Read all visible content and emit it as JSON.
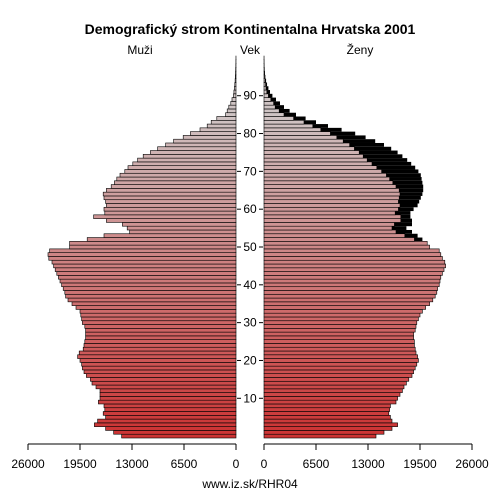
{
  "chart_data": {
    "type": "bar",
    "title": "Demografický strom Kontinentalna Hrvatska 2001",
    "left_label": "Muži",
    "center_label": "Vek",
    "right_label": "Ženy",
    "footer": "www.iz.sk/RHR04",
    "x_ticks": [
      "26000",
      "19500",
      "13000",
      "6500",
      "0",
      "0",
      "6500",
      "13000",
      "19500",
      "26000"
    ],
    "y_ticks": [
      "10",
      "20",
      "30",
      "40",
      "50",
      "60",
      "70",
      "80",
      "90"
    ],
    "xlim": [
      0,
      26000
    ],
    "age_range": [
      0,
      100
    ],
    "ages": [
      0,
      1,
      2,
      3,
      4,
      5,
      6,
      7,
      8,
      9,
      10,
      11,
      12,
      13,
      14,
      15,
      16,
      17,
      18,
      19,
      20,
      21,
      22,
      23,
      24,
      25,
      26,
      27,
      28,
      29,
      30,
      31,
      32,
      33,
      34,
      35,
      36,
      37,
      38,
      39,
      40,
      41,
      42,
      43,
      44,
      45,
      46,
      47,
      48,
      49,
      50,
      51,
      52,
      53,
      54,
      55,
      56,
      57,
      58,
      59,
      60,
      61,
      62,
      63,
      64,
      65,
      66,
      67,
      68,
      69,
      70,
      71,
      72,
      73,
      74,
      75,
      76,
      77,
      78,
      79,
      80,
      81,
      82,
      83,
      84,
      85,
      86,
      87,
      88,
      89,
      90,
      91,
      92,
      93,
      94,
      95,
      96,
      97,
      98,
      99,
      100
    ],
    "men": [
      14300,
      15300,
      16300,
      17700,
      17300,
      16300,
      16600,
      16400,
      16500,
      17200,
      17000,
      17000,
      17000,
      17500,
      18000,
      18200,
      18700,
      19000,
      19200,
      19300,
      19500,
      19800,
      19600,
      19100,
      19000,
      18900,
      18800,
      18800,
      18800,
      18900,
      19200,
      19300,
      19400,
      19500,
      20000,
      20500,
      21000,
      21300,
      21400,
      21600,
      21800,
      22000,
      22200,
      22400,
      22600,
      22800,
      23000,
      23400,
      23500,
      23300,
      20800,
      20800,
      18600,
      16500,
      13300,
      13600,
      14200,
      16200,
      17800,
      16400,
      16500,
      16200,
      16300,
      16500,
      16600,
      16200,
      15600,
      15200,
      14900,
      14500,
      13900,
      13500,
      12900,
      12300,
      11600,
      10700,
      9800,
      8800,
      7800,
      6600,
      5700,
      4500,
      3600,
      3100,
      2400,
      1300,
      1100,
      900,
      650,
      500,
      320,
      260,
      200,
      150,
      110,
      75,
      55,
      40,
      25,
      15,
      8
    ],
    "women": [
      14000,
      15000,
      16000,
      16700,
      16000,
      15800,
      15600,
      15700,
      15800,
      16500,
      16700,
      17000,
      17300,
      17500,
      17800,
      18100,
      18500,
      18700,
      18900,
      19100,
      19300,
      19200,
      19000,
      18900,
      18800,
      18800,
      18700,
      18700,
      18900,
      19000,
      19100,
      19300,
      19500,
      19800,
      20200,
      20700,
      21100,
      21400,
      21600,
      21700,
      21900,
      22000,
      22100,
      22300,
      22500,
      22700,
      22600,
      22300,
      22100,
      21900,
      20700,
      20400,
      19800,
      19200,
      18500,
      17800,
      18500,
      18500,
      18300,
      18300,
      18700,
      19200,
      19400,
      19600,
      19800,
      19900,
      19900,
      19800,
      19700,
      19600,
      19300,
      18900,
      18400,
      17900,
      17300,
      16700,
      15900,
      15000,
      13900,
      12700,
      11400,
      9700,
      8000,
      6500,
      5200,
      4000,
      3200,
      2500,
      2000,
      1500,
      1050,
      750,
      550,
      380,
      260,
      170,
      110,
      65,
      35,
      20,
      10
    ],
    "women_excess": [
      0,
      0,
      0,
      0,
      0,
      0,
      0,
      0,
      0,
      0,
      0,
      0,
      0,
      0,
      0,
      0,
      0,
      0,
      0,
      0,
      0,
      0,
      0,
      0,
      0,
      0,
      0,
      0,
      0,
      0,
      0,
      0,
      0,
      0,
      0,
      0,
      0,
      0,
      0,
      0,
      0,
      0,
      0,
      0,
      0,
      0,
      0,
      0,
      0,
      0,
      0,
      0,
      1000,
      1600,
      2000,
      1800,
      2200,
      1400,
      1200,
      1900,
      1900,
      2200,
      2600,
      2700,
      2800,
      3000,
      3400,
      3700,
      4000,
      4300,
      4600,
      4800,
      4900,
      5000,
      4900,
      4800,
      4600,
      4300,
      4000,
      3600,
      3100,
      2600,
      1900,
      1500,
      1500,
      1500,
      1300,
      1100,
      800,
      650,
      500,
      400,
      300,
      180,
      120,
      80,
      50,
      25,
      12,
      5,
      2
    ],
    "colors": {
      "young": "#cc3333",
      "old": "#cfc4c4",
      "excess": "#000000"
    }
  }
}
